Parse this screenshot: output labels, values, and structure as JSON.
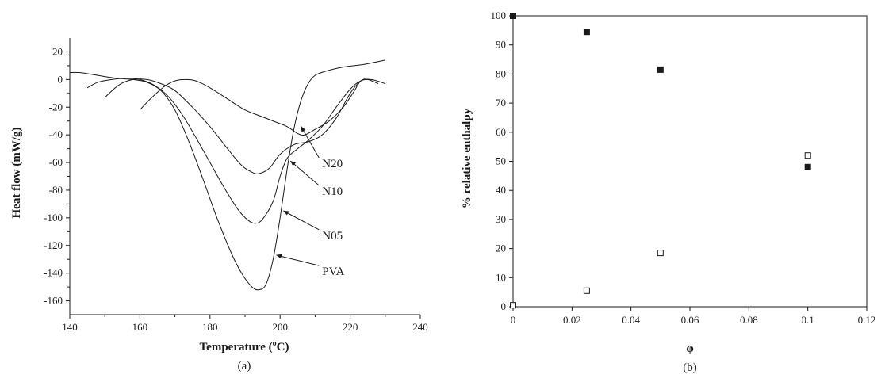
{
  "colors": {
    "ink": "#1a1a1a",
    "background": "#ffffff"
  },
  "chart_data": [
    {
      "type": "line",
      "caption": "(a)",
      "title": "",
      "xlabel": "Temperature (",
      "xlabel_sup": "o",
      "xlabel_tail": "C)",
      "ylabel": "Heat flow (mW/g)",
      "xlim": [
        140,
        240
      ],
      "ylim": [
        -170,
        30
      ],
      "x_ticks": [
        140,
        160,
        180,
        200,
        220,
        240
      ],
      "y_ticks": [
        20,
        0,
        -20,
        -40,
        -60,
        -80,
        -100,
        -120,
        -140,
        -160
      ],
      "grid": false,
      "legend": "none",
      "series": [
        {
          "name": "PVA",
          "points": [
            [
              140,
              5
            ],
            [
              143,
              5
            ],
            [
              148,
              3
            ],
            [
              153,
              1
            ],
            [
              158,
              0
            ],
            [
              162,
              -2
            ],
            [
              166,
              -8
            ],
            [
              170,
              -22
            ],
            [
              174,
              -45
            ],
            [
              178,
              -72
            ],
            [
              182,
              -100
            ],
            [
              186,
              -125
            ],
            [
              189,
              -140
            ],
            [
              192,
              -150
            ],
            [
              194,
              -152
            ],
            [
              196,
              -148
            ],
            [
              198,
              -130
            ],
            [
              200,
              -100
            ],
            [
              202,
              -65
            ],
            [
              204,
              -35
            ],
            [
              206,
              -15
            ],
            [
              208,
              -3
            ],
            [
              210,
              3
            ],
            [
              213,
              6
            ],
            [
              218,
              9
            ],
            [
              224,
              11
            ],
            [
              230,
              14
            ]
          ]
        },
        {
          "name": "N05",
          "points": [
            [
              145,
              -6
            ],
            [
              148,
              -2
            ],
            [
              152,
              0
            ],
            [
              156,
              1
            ],
            [
              160,
              0
            ],
            [
              164,
              -4
            ],
            [
              168,
              -12
            ],
            [
              172,
              -25
            ],
            [
              176,
              -42
            ],
            [
              180,
              -60
            ],
            [
              184,
              -78
            ],
            [
              188,
              -94
            ],
            [
              191,
              -102
            ],
            [
              193,
              -104
            ],
            [
              195,
              -101
            ],
            [
              198,
              -88
            ],
            [
              200,
              -70
            ],
            [
              202,
              -57
            ],
            [
              205,
              -50
            ],
            [
              208,
              -44
            ],
            [
              212,
              -34
            ],
            [
              216,
              -20
            ],
            [
              220,
              -7
            ],
            [
              223,
              -1
            ],
            [
              226,
              0
            ],
            [
              230,
              -3
            ]
          ]
        },
        {
          "name": "N10",
          "points": [
            [
              150,
              -13
            ],
            [
              154,
              -4
            ],
            [
              158,
              0
            ],
            [
              162,
              0
            ],
            [
              166,
              -3
            ],
            [
              170,
              -8
            ],
            [
              175,
              -20
            ],
            [
              180,
              -34
            ],
            [
              185,
              -50
            ],
            [
              189,
              -62
            ],
            [
              192,
              -67
            ],
            [
              194,
              -68
            ],
            [
              197,
              -64
            ],
            [
              200,
              -54
            ],
            [
              204,
              -47
            ],
            [
              208,
              -45
            ],
            [
              212,
              -40
            ],
            [
              216,
              -28
            ],
            [
              220,
              -10
            ],
            [
              223,
              -1
            ],
            [
              225,
              0
            ],
            [
              228,
              -3
            ]
          ]
        },
        {
          "name": "N20",
          "points": [
            [
              160,
              -22
            ],
            [
              163,
              -14
            ],
            [
              167,
              -5
            ],
            [
              170,
              -1
            ],
            [
              173,
              0
            ],
            [
              176,
              -1
            ],
            [
              180,
              -6
            ],
            [
              185,
              -14
            ],
            [
              190,
              -22
            ],
            [
              195,
              -27
            ],
            [
              199,
              -31
            ],
            [
              202,
              -34
            ],
            [
              205,
              -39
            ],
            [
              207,
              -40
            ],
            [
              210,
              -36
            ],
            [
              214,
              -30
            ],
            [
              218,
              -20
            ],
            [
              221,
              -9
            ],
            [
              223,
              -1
            ],
            [
              225,
              0
            ]
          ]
        }
      ],
      "annotations": [
        {
          "text": "N20",
          "target": [
            206,
            -34
          ],
          "at": [
            212,
            -60
          ]
        },
        {
          "text": "N10",
          "target": [
            203,
            -59
          ],
          "at": [
            212,
            -80
          ]
        },
        {
          "text": "N05",
          "target": [
            201,
            -95
          ],
          "at": [
            212,
            -112
          ]
        },
        {
          "text": "PVA",
          "target": [
            199,
            -127
          ],
          "at": [
            212,
            -138
          ]
        }
      ]
    },
    {
      "type": "scatter",
      "caption": "(b)",
      "title": "",
      "xlabel": "φ",
      "ylabel": "% relative enthalpy",
      "xlim": [
        0,
        0.12
      ],
      "ylim": [
        0,
        100
      ],
      "x_ticks": [
        0,
        0.02,
        0.04,
        0.06,
        0.08,
        0.1,
        0.12
      ],
      "x_tick_labels": [
        "0",
        "0.02",
        "0.04",
        "0.06",
        "0.08",
        "0.1",
        "0.12"
      ],
      "y_ticks": [
        0,
        10,
        20,
        30,
        40,
        50,
        60,
        70,
        80,
        90,
        100
      ],
      "grid": false,
      "legend": "none",
      "series": [
        {
          "marker": "filled-square",
          "x": [
            0,
            0.025,
            0.05,
            0.1
          ],
          "y": [
            100,
            94.5,
            81.5,
            48
          ]
        },
        {
          "marker": "open-square",
          "x": [
            0,
            0.025,
            0.05,
            0.1
          ],
          "y": [
            0.5,
            5.5,
            18.5,
            52
          ]
        }
      ]
    }
  ]
}
